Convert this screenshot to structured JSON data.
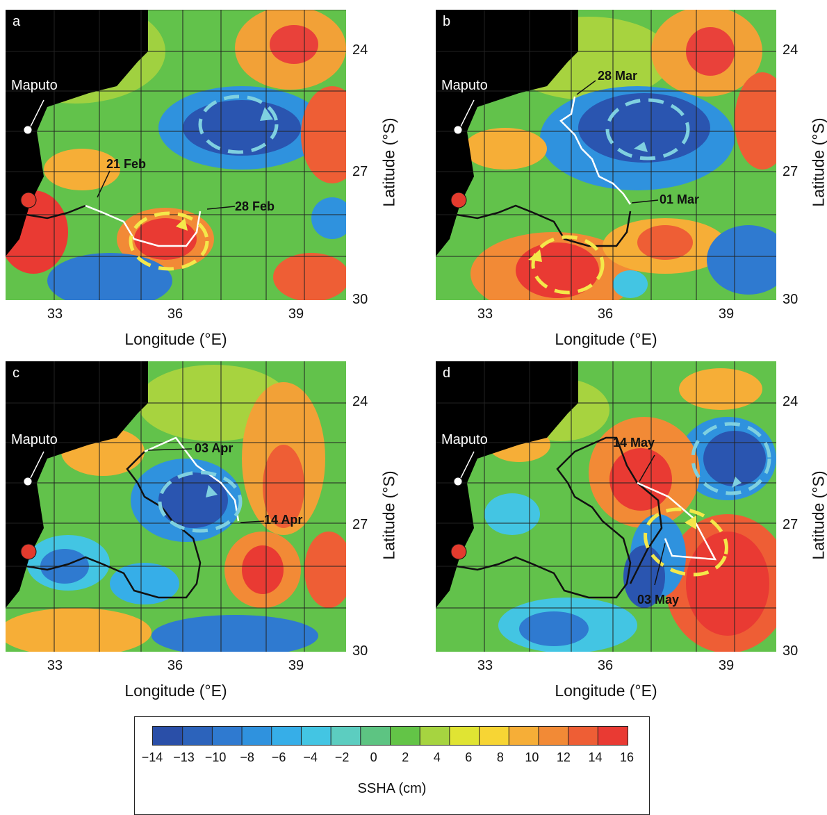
{
  "panels": [
    {
      "label": "a",
      "dates": [
        "21 Feb",
        "28 Feb"
      ]
    },
    {
      "label": "b",
      "dates": [
        "28 Mar",
        "01 Mar"
      ]
    },
    {
      "label": "c",
      "dates": [
        "03 Apr",
        "14 Apr"
      ]
    },
    {
      "label": "d",
      "dates": [
        "14 May",
        "03 May"
      ]
    }
  ],
  "place_label": "Maputo",
  "axes": {
    "xlabel": "Longitude (°E)",
    "ylabel": "Latitude (°S)",
    "xticks": [
      "33",
      "36",
      "39"
    ],
    "yticks": [
      "24",
      "27",
      "30"
    ]
  },
  "colorbar": {
    "title": "SSHA (cm)",
    "ticks": [
      "−14",
      "−13",
      "−10",
      "−8",
      "−6",
      "−4",
      "−2",
      "0",
      "2",
      "4",
      "6",
      "8",
      "10",
      "12",
      "14",
      "16"
    ],
    "colors": [
      "#2a4fa8",
      "#2c63bb",
      "#2f7ad0",
      "#2f92de",
      "#36aee8",
      "#43c5e3",
      "#5ccdc0",
      "#5dc482",
      "#63c447",
      "#a6d440",
      "#e0e433",
      "#f7d534",
      "#f6ae37",
      "#f28a36",
      "#ee5e35",
      "#e93a33"
    ]
  },
  "colors": {
    "land": "#000000",
    "track_past": "#111111",
    "track_current": "#ffffff",
    "cyclonic_eddy": "#7fd0e0",
    "anticyclonic_eddy": "#f4e84a",
    "release_marker": "#e33b2e"
  }
}
